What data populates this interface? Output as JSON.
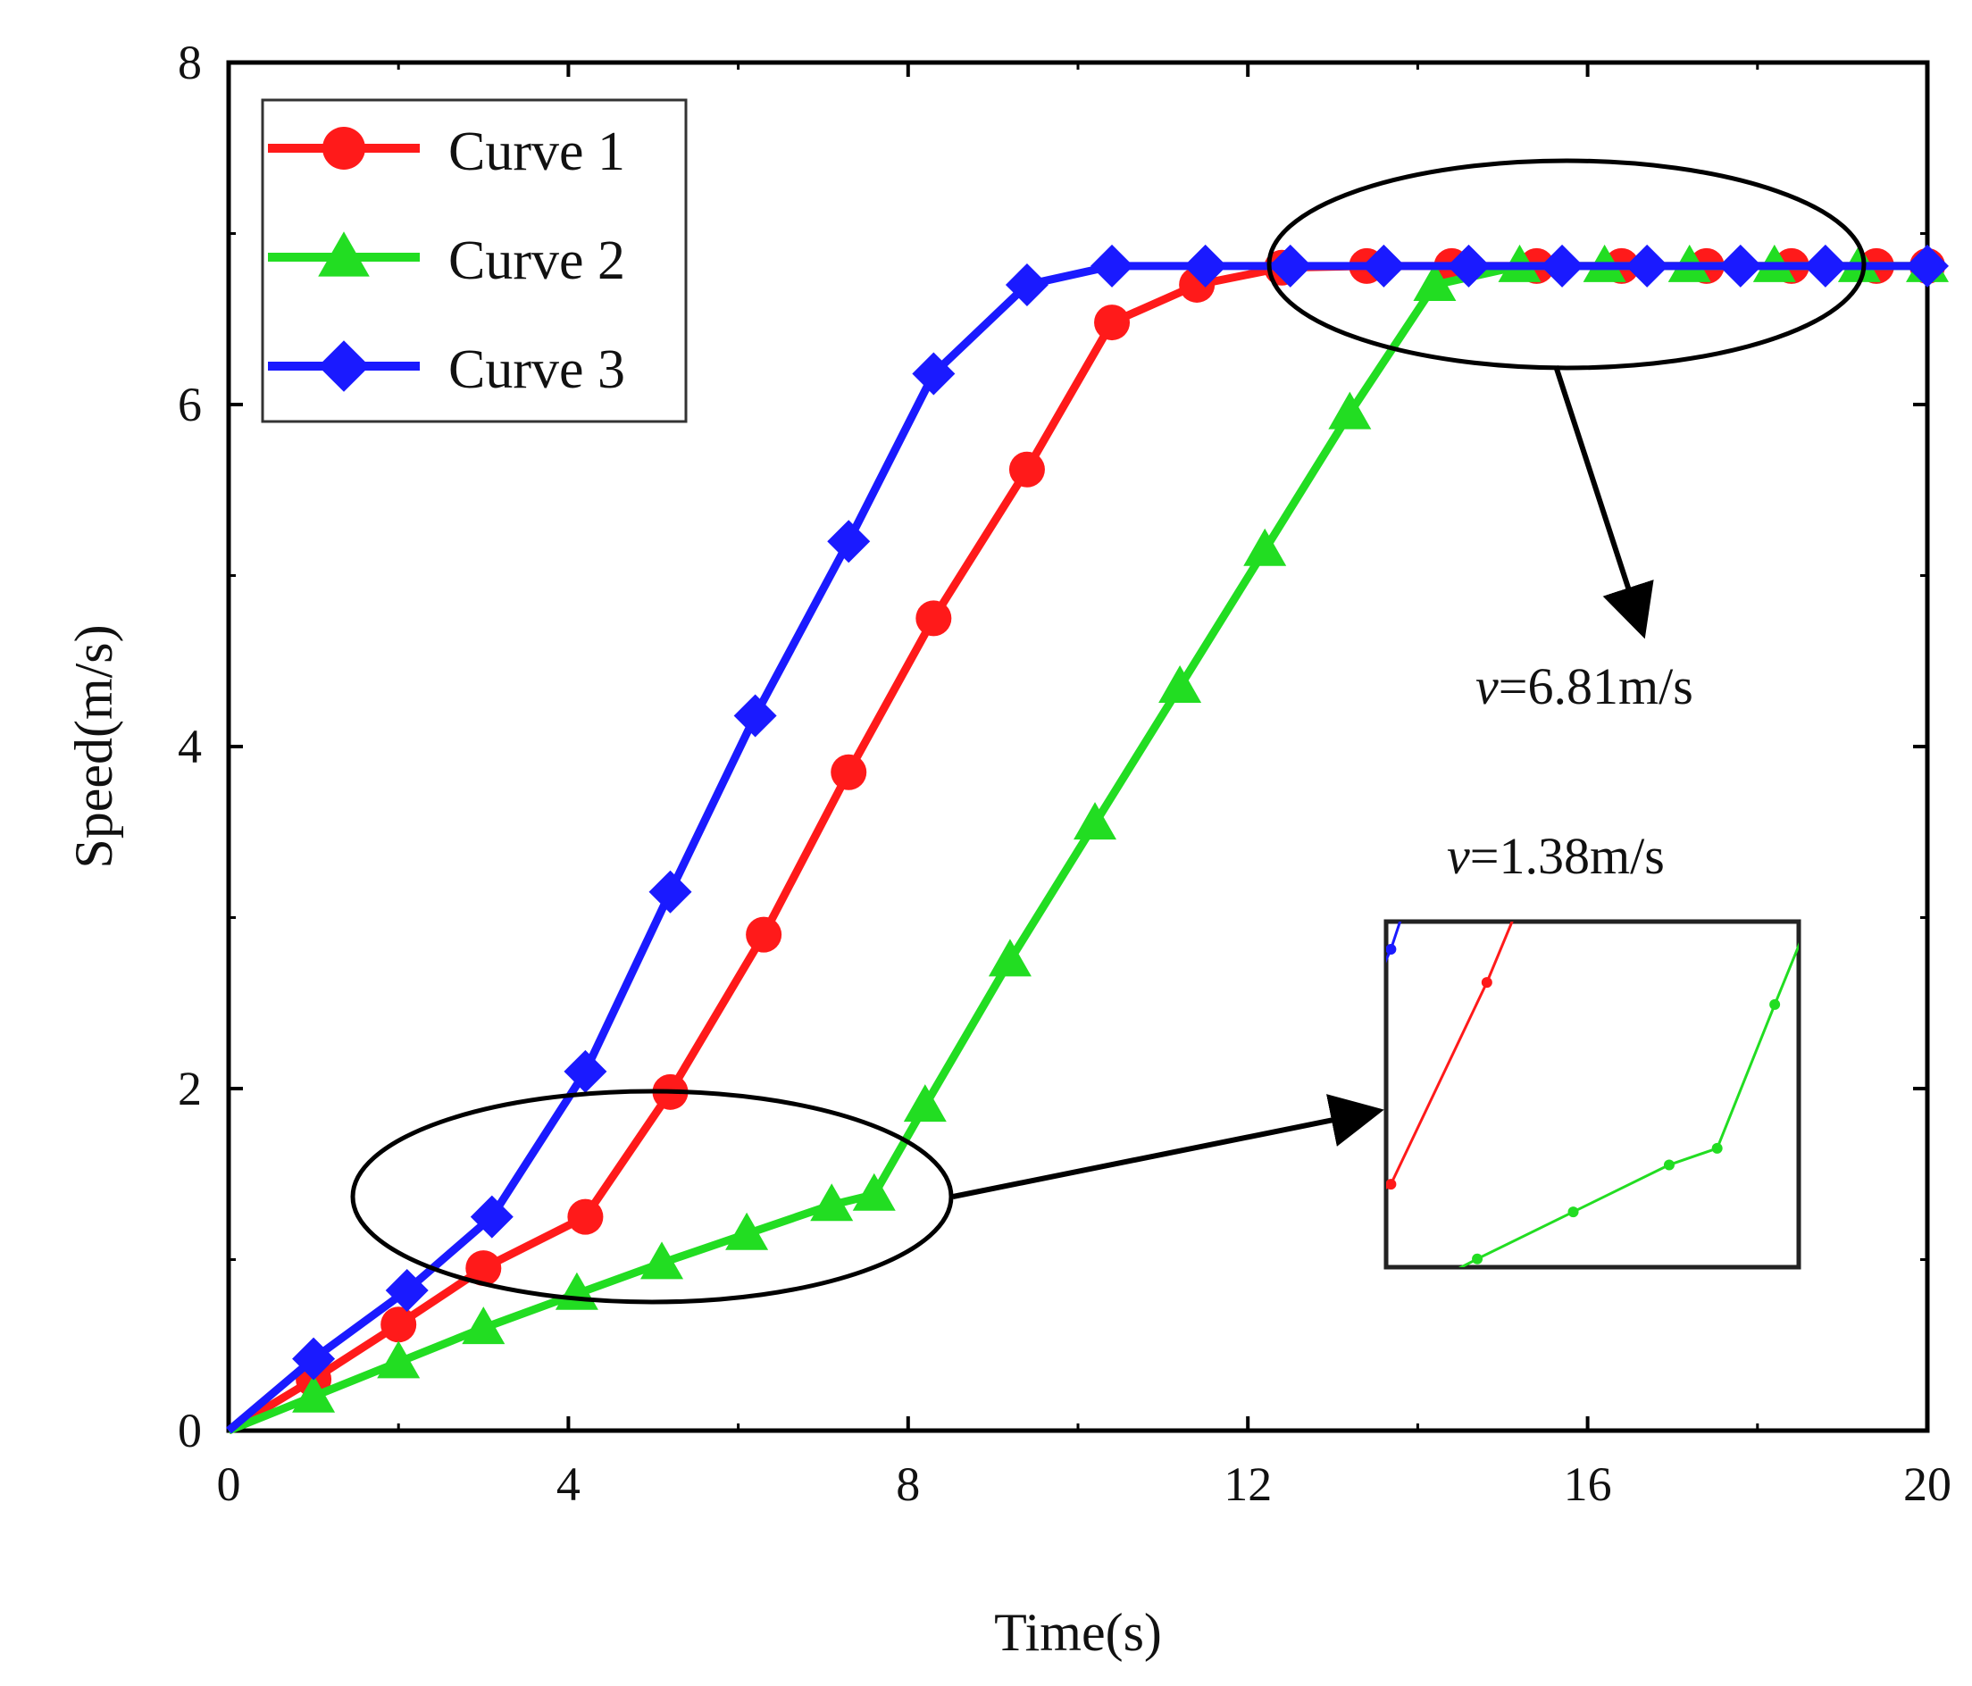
{
  "chart_data": {
    "type": "line",
    "title": "",
    "xlabel": "Time(s)",
    "ylabel": "Speed(m/s)",
    "xlim": [
      0,
      20
    ],
    "ylim": [
      0,
      8
    ],
    "xticks": [
      0,
      4,
      8,
      12,
      16,
      20
    ],
    "yticks": [
      0,
      2,
      4,
      6,
      8
    ],
    "xtick_labels": [
      "0",
      "4",
      "8",
      "12",
      "16",
      "20"
    ],
    "ytick_labels": [
      "0",
      "2",
      "4",
      "6",
      "8"
    ],
    "grid": false,
    "legend_position": "top-left",
    "series": [
      {
        "name": "Curve 1",
        "color": "#ff1a1a",
        "marker": "circle",
        "x": [
          0,
          1,
          2,
          3,
          4.2,
          5.2,
          6.3,
          7.3,
          8.3,
          9.4,
          10.4,
          11.4,
          12.4,
          13.4,
          14.4,
          15.4,
          16.4,
          17.4,
          18.4,
          19.4,
          20
        ],
        "y": [
          0,
          0.3,
          0.62,
          0.95,
          1.25,
          1.98,
          2.9,
          3.85,
          4.75,
          5.62,
          6.48,
          6.7,
          6.8,
          6.81,
          6.81,
          6.81,
          6.81,
          6.81,
          6.81,
          6.81,
          6.81
        ]
      },
      {
        "name": "Curve 2",
        "color": "#22dd22",
        "marker": "triangle",
        "x": [
          0,
          1,
          2,
          3,
          4.1,
          5.1,
          6.1,
          7.1,
          7.6,
          8.2,
          9.2,
          10.2,
          11.2,
          12.2,
          13.2,
          14.2,
          15.2,
          16.2,
          17.2,
          18.2,
          19.2,
          20
        ],
        "y": [
          0,
          0.2,
          0.4,
          0.6,
          0.8,
          0.98,
          1.15,
          1.32,
          1.38,
          1.9,
          2.75,
          3.55,
          4.35,
          5.15,
          5.95,
          6.7,
          6.81,
          6.81,
          6.81,
          6.81,
          6.81,
          6.81
        ]
      },
      {
        "name": "Curve 3",
        "color": "#1a1aff",
        "marker": "diamond",
        "x": [
          0,
          1,
          2.1,
          3.1,
          4.2,
          5.2,
          6.2,
          7.3,
          8.3,
          9.4,
          10.4,
          11.5,
          12.5,
          13.6,
          14.6,
          15.7,
          16.7,
          17.8,
          18.8,
          20
        ],
        "y": [
          0,
          0.42,
          0.82,
          1.25,
          2.1,
          3.15,
          4.18,
          5.2,
          6.18,
          6.7,
          6.81,
          6.81,
          6.81,
          6.81,
          6.81,
          6.81,
          6.81,
          6.81,
          6.81,
          6.81
        ]
      }
    ],
    "annotations": [
      {
        "id": "upper",
        "var": "v",
        "text": "=6.81m/s"
      },
      {
        "id": "lower",
        "var": "v",
        "text": "=1.38m/s"
      }
    ]
  }
}
